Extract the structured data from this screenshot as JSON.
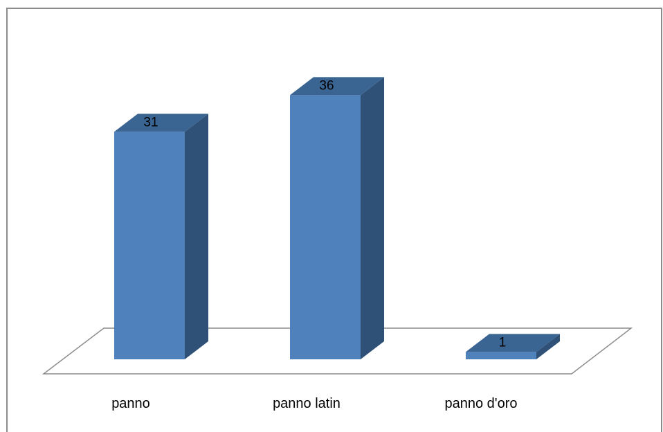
{
  "chart_data": {
    "type": "bar",
    "style": "3d-column",
    "categories": [
      "panno",
      "panno latin",
      "panno d'oro"
    ],
    "values": [
      31,
      36,
      1
    ],
    "data_labels": [
      "31",
      "36",
      "1"
    ],
    "title": "",
    "xlabel": "",
    "ylabel": "",
    "ylim": [
      0,
      40
    ],
    "grid": false,
    "legend": "none",
    "colors": {
      "front": "#4f81bd",
      "top": "#3a6491",
      "side": "#2f5177",
      "floor_stroke": "#8c8c8c",
      "frame_stroke": "#8c8c8c"
    }
  }
}
